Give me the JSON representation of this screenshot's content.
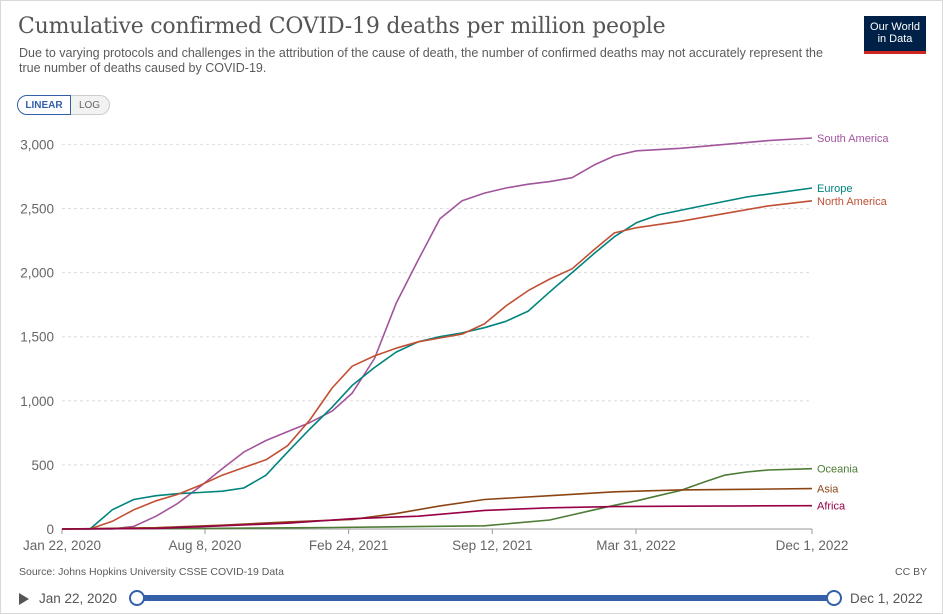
{
  "header": {
    "title": "Cumulative confirmed COVID-19 deaths per million people",
    "subtitle": "Due to varying protocols and challenges in the attribution of the cause of death, the number of confirmed deaths may not accurately represent the true number of deaths caused by COVID-19.",
    "logo_line1": "Our World",
    "logo_line2": "in Data"
  },
  "controls": {
    "linear_label": "LINEAR",
    "log_label": "LOG",
    "selected": "LINEAR"
  },
  "colors": {
    "accent": "#3360a9",
    "grid": "#dddddd",
    "axis": "#999999"
  },
  "chart_data": {
    "type": "line",
    "title": "Cumulative confirmed COVID-19 deaths per million people",
    "xlabel": "",
    "ylabel": "",
    "x_start": "2020-01-22",
    "x_end": "2022-12-01",
    "x_ticks": [
      {
        "date": "2020-01-22",
        "label": "Jan 22, 2020"
      },
      {
        "date": "2020-08-08",
        "label": "Aug 8, 2020"
      },
      {
        "date": "2021-02-24",
        "label": "Feb 24, 2021"
      },
      {
        "date": "2021-09-12",
        "label": "Sep 12, 2021"
      },
      {
        "date": "2022-03-31",
        "label": "Mar 31, 2022"
      },
      {
        "date": "2022-12-01",
        "label": "Dec 1, 2022"
      }
    ],
    "y_ticks": [
      {
        "value": 0,
        "label": "0"
      },
      {
        "value": 500,
        "label": "500"
      },
      {
        "value": 1000,
        "label": "1,000"
      },
      {
        "value": 1500,
        "label": "1,500"
      },
      {
        "value": 2000,
        "label": "2,000"
      },
      {
        "value": 2500,
        "label": "2,500"
      },
      {
        "value": 3000,
        "label": "3,000"
      }
    ],
    "ylim": [
      0,
      3050
    ],
    "grid": "horizontal dashed",
    "legend": "inline labels at right end of lines",
    "series": [
      {
        "name": "South America",
        "color": "#a2559c",
        "points": [
          [
            "2020-01-22",
            0
          ],
          [
            "2020-04-01",
            0
          ],
          [
            "2020-05-01",
            20
          ],
          [
            "2020-06-01",
            100
          ],
          [
            "2020-07-01",
            200
          ],
          [
            "2020-08-01",
            330
          ],
          [
            "2020-09-01",
            470
          ],
          [
            "2020-10-01",
            600
          ],
          [
            "2020-11-01",
            690
          ],
          [
            "2020-12-01",
            760
          ],
          [
            "2021-01-01",
            830
          ],
          [
            "2021-02-01",
            920
          ],
          [
            "2021-03-01",
            1060
          ],
          [
            "2021-04-01",
            1330
          ],
          [
            "2021-05-01",
            1760
          ],
          [
            "2021-06-01",
            2100
          ],
          [
            "2021-07-01",
            2420
          ],
          [
            "2021-08-01",
            2560
          ],
          [
            "2021-09-01",
            2620
          ],
          [
            "2021-10-01",
            2660
          ],
          [
            "2021-11-01",
            2690
          ],
          [
            "2021-12-01",
            2710
          ],
          [
            "2022-01-01",
            2740
          ],
          [
            "2022-02-01",
            2840
          ],
          [
            "2022-03-01",
            2910
          ],
          [
            "2022-04-01",
            2950
          ],
          [
            "2022-06-01",
            2970
          ],
          [
            "2022-08-01",
            3000
          ],
          [
            "2022-10-01",
            3030
          ],
          [
            "2022-12-01",
            3050
          ]
        ]
      },
      {
        "name": "Europe",
        "color": "#00847e",
        "points": [
          [
            "2020-01-22",
            0
          ],
          [
            "2020-03-01",
            0
          ],
          [
            "2020-04-01",
            150
          ],
          [
            "2020-05-01",
            230
          ],
          [
            "2020-06-01",
            260
          ],
          [
            "2020-07-01",
            275
          ],
          [
            "2020-08-01",
            285
          ],
          [
            "2020-09-01",
            295
          ],
          [
            "2020-10-01",
            320
          ],
          [
            "2020-11-01",
            420
          ],
          [
            "2020-12-01",
            600
          ],
          [
            "2021-01-01",
            780
          ],
          [
            "2021-02-01",
            950
          ],
          [
            "2021-03-01",
            1120
          ],
          [
            "2021-04-01",
            1260
          ],
          [
            "2021-05-01",
            1380
          ],
          [
            "2021-06-01",
            1460
          ],
          [
            "2021-07-01",
            1500
          ],
          [
            "2021-08-01",
            1530
          ],
          [
            "2021-09-01",
            1570
          ],
          [
            "2021-10-01",
            1620
          ],
          [
            "2021-11-01",
            1700
          ],
          [
            "2021-12-01",
            1850
          ],
          [
            "2022-01-01",
            2000
          ],
          [
            "2022-02-01",
            2150
          ],
          [
            "2022-03-01",
            2280
          ],
          [
            "2022-04-01",
            2390
          ],
          [
            "2022-05-01",
            2450
          ],
          [
            "2022-07-01",
            2520
          ],
          [
            "2022-09-01",
            2590
          ],
          [
            "2022-12-01",
            2660
          ]
        ]
      },
      {
        "name": "North America",
        "color": "#c15035",
        "points": [
          [
            "2020-01-22",
            0
          ],
          [
            "2020-03-01",
            0
          ],
          [
            "2020-04-01",
            60
          ],
          [
            "2020-05-01",
            150
          ],
          [
            "2020-06-01",
            220
          ],
          [
            "2020-07-01",
            270
          ],
          [
            "2020-08-01",
            340
          ],
          [
            "2020-09-01",
            420
          ],
          [
            "2020-10-01",
            480
          ],
          [
            "2020-11-01",
            540
          ],
          [
            "2020-12-01",
            650
          ],
          [
            "2021-01-01",
            850
          ],
          [
            "2021-02-01",
            1100
          ],
          [
            "2021-03-01",
            1270
          ],
          [
            "2021-04-01",
            1350
          ],
          [
            "2021-05-01",
            1410
          ],
          [
            "2021-06-01",
            1460
          ],
          [
            "2021-07-01",
            1490
          ],
          [
            "2021-08-01",
            1520
          ],
          [
            "2021-09-01",
            1600
          ],
          [
            "2021-10-01",
            1740
          ],
          [
            "2021-11-01",
            1860
          ],
          [
            "2021-12-01",
            1950
          ],
          [
            "2022-01-01",
            2030
          ],
          [
            "2022-02-01",
            2180
          ],
          [
            "2022-03-01",
            2310
          ],
          [
            "2022-04-01",
            2350
          ],
          [
            "2022-06-01",
            2400
          ],
          [
            "2022-08-01",
            2460
          ],
          [
            "2022-10-01",
            2520
          ],
          [
            "2022-12-01",
            2560
          ]
        ]
      },
      {
        "name": "Oceania",
        "color": "#4c7c35",
        "points": [
          [
            "2020-01-22",
            0
          ],
          [
            "2020-08-01",
            5
          ],
          [
            "2021-02-01",
            12
          ],
          [
            "2021-09-01",
            25
          ],
          [
            "2021-12-01",
            70
          ],
          [
            "2022-01-01",
            110
          ],
          [
            "2022-02-01",
            150
          ],
          [
            "2022-03-01",
            185
          ],
          [
            "2022-04-01",
            220
          ],
          [
            "2022-05-01",
            260
          ],
          [
            "2022-06-01",
            300
          ],
          [
            "2022-07-01",
            360
          ],
          [
            "2022-08-01",
            420
          ],
          [
            "2022-09-01",
            445
          ],
          [
            "2022-10-01",
            460
          ],
          [
            "2022-12-01",
            470
          ]
        ]
      },
      {
        "name": "Asia",
        "color": "#8b4513",
        "points": [
          [
            "2020-01-22",
            0
          ],
          [
            "2020-06-01",
            10
          ],
          [
            "2020-09-01",
            30
          ],
          [
            "2020-12-01",
            55
          ],
          [
            "2021-03-01",
            75
          ],
          [
            "2021-05-01",
            120
          ],
          [
            "2021-07-01",
            180
          ],
          [
            "2021-09-01",
            230
          ],
          [
            "2021-12-01",
            260
          ],
          [
            "2022-03-01",
            290
          ],
          [
            "2022-06-01",
            305
          ],
          [
            "2022-09-01",
            310
          ],
          [
            "2022-12-01",
            315
          ]
        ]
      },
      {
        "name": "Africa",
        "color": "#970046",
        "points": [
          [
            "2020-01-22",
            0
          ],
          [
            "2020-06-01",
            5
          ],
          [
            "2020-09-01",
            25
          ],
          [
            "2020-12-01",
            45
          ],
          [
            "2021-03-01",
            80
          ],
          [
            "2021-06-01",
            100
          ],
          [
            "2021-09-01",
            145
          ],
          [
            "2021-12-01",
            165
          ],
          [
            "2022-03-01",
            175
          ],
          [
            "2022-06-01",
            178
          ],
          [
            "2022-09-01",
            180
          ],
          [
            "2022-12-01",
            182
          ]
        ]
      }
    ]
  },
  "footer": {
    "source": "Source: Johns Hopkins University CSSE COVID-19 Data",
    "license": "CC BY"
  },
  "timeline": {
    "start_label": "Jan 22, 2020",
    "end_label": "Dec 1, 2022",
    "start_fraction": 0,
    "end_fraction": 1
  }
}
